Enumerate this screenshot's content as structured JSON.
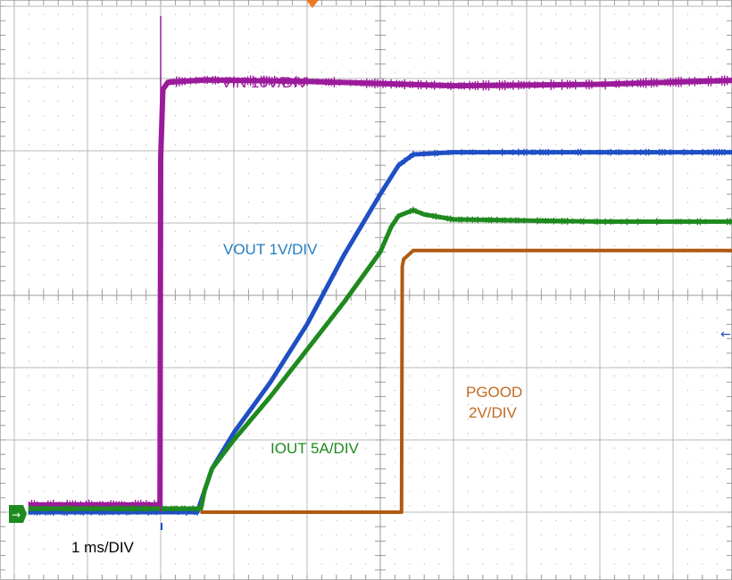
{
  "chart_data": {
    "type": "line",
    "title": "",
    "xlabel": "",
    "ylabel": "",
    "x_unit": "ms",
    "xlim": [
      -2,
      10
    ],
    "ylim": [
      -1,
      7
    ],
    "grid": true,
    "timebase_label": "1 ms/DIV",
    "series": [
      {
        "name": "VIN 10V/DIV",
        "label": "VIN 10V/DIV",
        "color": "#9b1b9b",
        "noise": 3,
        "x": [
          -1.8,
          -0.01,
          0,
          0.03,
          0.1,
          0.6,
          2.0,
          4.0,
          6.0,
          8.0,
          10.0
        ],
        "y": [
          0.1,
          0.1,
          4.9,
          5.85,
          5.95,
          5.98,
          5.96,
          5.9,
          5.92,
          5.98,
          6.02
        ]
      },
      {
        "name": "VOUT 1V/DIV",
        "label": "VOUT 1V/DIV",
        "color": "#1f4fc4",
        "noise": 2,
        "x": [
          -1.8,
          0.5,
          0.6,
          0.7,
          1.0,
          1.5,
          2.0,
          2.5,
          3.0,
          3.25,
          3.45,
          4.0,
          6.0,
          8.0,
          10.0
        ],
        "y": [
          0.0,
          0.0,
          0.3,
          0.6,
          1.1,
          1.8,
          2.6,
          3.55,
          4.4,
          4.8,
          4.95,
          4.98,
          4.98,
          4.98,
          4.98
        ]
      },
      {
        "name": "IOUT 5A/DIV",
        "label": "IOUT 5A/DIV",
        "color": "#1f8a1f",
        "noise": 2,
        "x": [
          -1.8,
          0.55,
          0.6,
          0.7,
          1.0,
          1.5,
          2.0,
          2.5,
          3.0,
          3.15,
          3.25,
          3.45,
          3.6,
          4.0,
          6.0,
          8.0,
          10.0
        ],
        "y": [
          0.05,
          0.05,
          0.3,
          0.6,
          1.0,
          1.6,
          2.25,
          2.9,
          3.6,
          3.95,
          4.1,
          4.18,
          4.12,
          4.05,
          4.02,
          4.02,
          4.02
        ]
      },
      {
        "name": "PGOOD 2V/DIV",
        "label_lines": [
          "PGOOD",
          "2V/DIV"
        ],
        "color": "#b05a10",
        "noise": 1,
        "x": [
          0.55,
          3.29,
          3.3,
          3.32,
          3.45,
          4.0,
          6.0,
          8.0,
          10.0
        ],
        "y": [
          0.0,
          0.0,
          3.4,
          3.5,
          3.62,
          3.62,
          3.62,
          3.62,
          3.62
        ]
      }
    ]
  }
}
